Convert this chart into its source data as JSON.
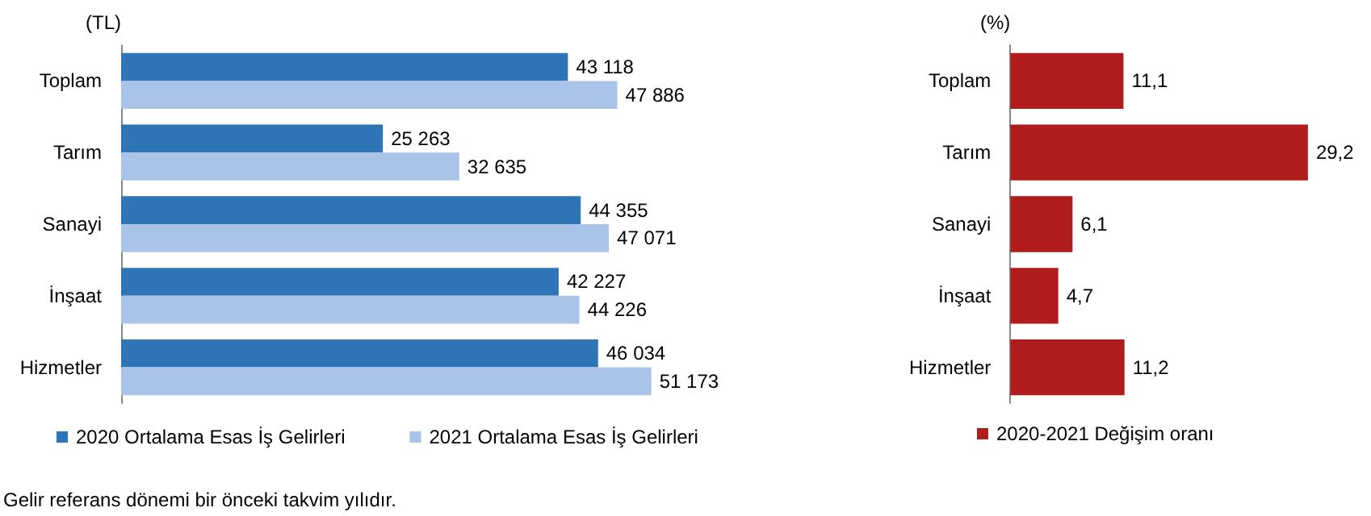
{
  "chart_data": [
    {
      "type": "bar",
      "orientation": "horizontal",
      "ylabel": "(TL)",
      "categories": [
        "Toplam",
        "Tarım",
        "Sanayi",
        "İnşaat",
        "Hizmetler"
      ],
      "series": [
        {
          "name": "2020 Ortalama Esas İş Gelirleri",
          "color": "#2e75b6",
          "values": [
            43118,
            25263,
            44355,
            42227,
            46034
          ],
          "value_labels": [
            "43 118",
            "25 263",
            "44 355",
            "42 227",
            "46 034"
          ]
        },
        {
          "name": "2021 Ortalama Esas İş Gelirleri",
          "color": "#a9c4e8",
          "values": [
            47886,
            32635,
            47071,
            44226,
            51173
          ],
          "value_labels": [
            "47 886",
            "32 635",
            "47 071",
            "44 226",
            "51 173"
          ]
        }
      ],
      "legend": "bottom",
      "annotations": [
        "Gelir referans dönemi bir önceki takvim yılıdır."
      ]
    },
    {
      "type": "bar",
      "orientation": "horizontal",
      "ylabel": "(%)",
      "categories": [
        "Toplam",
        "Tarım",
        "Sanayi",
        "İnşaat",
        "Hizmetler"
      ],
      "series": [
        {
          "name": "2020-2021 Değişim oranı",
          "color": "#b01c1c",
          "values": [
            11.1,
            29.2,
            6.1,
            4.7,
            11.2
          ],
          "value_labels": [
            "11,1",
            "29,2",
            "6,1",
            "4,7",
            "11,2"
          ]
        }
      ],
      "legend": "bottom"
    }
  ]
}
